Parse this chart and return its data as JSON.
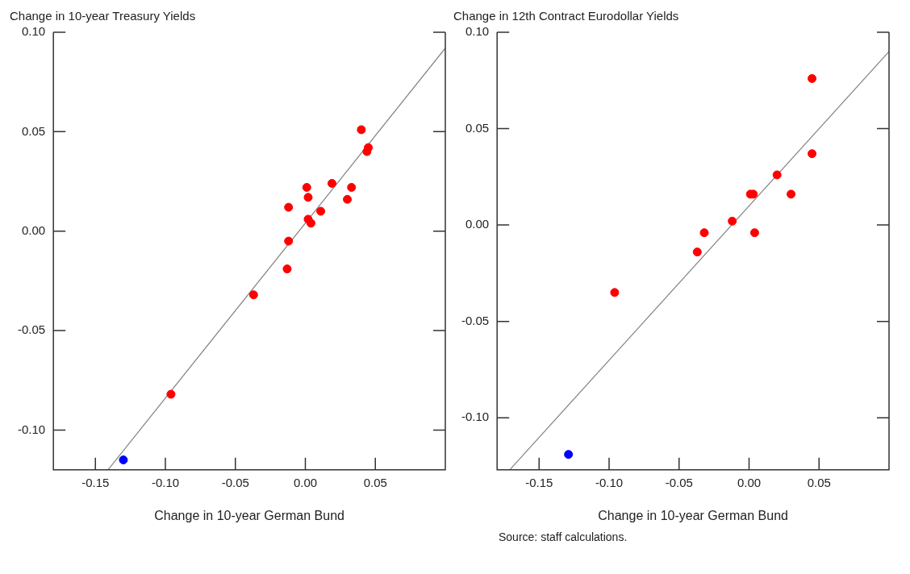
{
  "chart_data": [
    {
      "type": "scatter",
      "title": "Change in 10-year Treasury Yields",
      "xlabel": "Change in 10-year German Bund",
      "xlim": [
        -0.18,
        0.1
      ],
      "xticks": [
        {
          "value": -0.15,
          "label": "-0.15"
        },
        {
          "value": -0.1,
          "label": "-0.10"
        },
        {
          "value": -0.05,
          "label": "-0.05"
        },
        {
          "value": 0,
          "label": "0.00"
        },
        {
          "value": 0.05,
          "label": "0.05"
        }
      ],
      "ylim": [
        -0.12,
        0.1
      ],
      "yticks": [
        {
          "value": -0.1,
          "label": "-0.10"
        },
        {
          "value": -0.05,
          "label": "-0.05"
        },
        {
          "value": 0,
          "label": "0.00"
        },
        {
          "value": 0.05,
          "label": "0.05"
        },
        {
          "value": 0.1,
          "label": "0.10"
        }
      ],
      "grid": false,
      "legend": false,
      "marker": "circle",
      "series": [
        {
          "color": "#ff0000",
          "x": [
            0.04,
            0.045,
            0.044,
            0.019,
            0.033,
            0.001,
            0.002,
            0.03,
            -0.012,
            0.011,
            0.002,
            0.004,
            -0.012,
            -0.013,
            -0.037,
            -0.096
          ],
          "values": [
            0.051,
            0.042,
            0.04,
            0.024,
            0.022,
            0.022,
            0.017,
            0.016,
            0.012,
            0.01,
            0.006,
            0.004,
            -0.005,
            -0.019,
            -0.032,
            -0.082
          ]
        },
        {
          "color": "#0000ff",
          "x": [
            -0.13
          ],
          "values": [
            -0.115
          ]
        },
        {
          "type": "line",
          "color": "#808080",
          "marker": "none",
          "x": [
            -0.141,
            0.1
          ],
          "values": [
            -0.12,
            0.092
          ]
        }
      ]
    },
    {
      "type": "scatter",
      "title": "Change in 12th Contract Eurodollar Yields",
      "xlabel": "Change in 10-year German Bund",
      "xlim": [
        -0.18,
        0.1
      ],
      "xticks": [
        {
          "value": -0.15,
          "label": "-0.15"
        },
        {
          "value": -0.1,
          "label": "-0.10"
        },
        {
          "value": -0.05,
          "label": "-0.05"
        },
        {
          "value": 0,
          "label": "0.00"
        },
        {
          "value": 0.05,
          "label": "0.05"
        }
      ],
      "ylim": [
        -0.127,
        0.1
      ],
      "yticks": [
        {
          "value": -0.1,
          "label": "-0.10"
        },
        {
          "value": -0.05,
          "label": "-0.05"
        },
        {
          "value": 0,
          "label": "0.00"
        },
        {
          "value": 0.05,
          "label": "0.05"
        },
        {
          "value": 0.1,
          "label": "0.10"
        }
      ],
      "grid": false,
      "legend": false,
      "marker": "circle",
      "annotations": [
        "Source: staff calculations."
      ],
      "series": [
        {
          "color": "#ff0000",
          "x": [
            0.045,
            0.045,
            0.02,
            0.03,
            0.001,
            0.003,
            -0.012,
            0.004,
            -0.032,
            -0.037,
            -0.096
          ],
          "values": [
            0.076,
            0.037,
            0.026,
            0.016,
            0.016,
            0.016,
            0.002,
            -0.004,
            -0.004,
            -0.014,
            -0.035
          ]
        },
        {
          "color": "#0000ff",
          "x": [
            -0.129
          ],
          "values": [
            -0.119
          ]
        },
        {
          "type": "line",
          "color": "#808080",
          "marker": "none",
          "x": [
            -0.171,
            0.1
          ],
          "values": [
            -0.127,
            0.09
          ]
        }
      ]
    }
  ]
}
